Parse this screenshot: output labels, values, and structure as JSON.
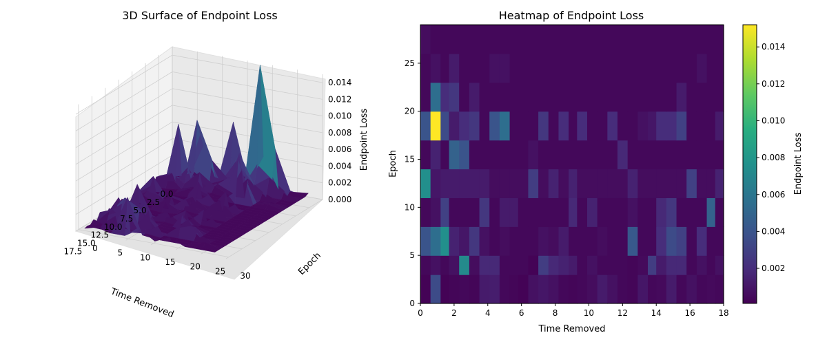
{
  "chart_data": [
    {
      "type": "surface3d",
      "title": "3D Surface of Endpoint Loss",
      "xlabel": "Time Removed",
      "ylabel": "Epoch",
      "zlabel": "Endpoint Loss",
      "x_ticks": [
        "0.0",
        "2.5",
        "5.0",
        "7.5",
        "10.0",
        "12.5",
        "15.0",
        "17.5"
      ],
      "y_ticks": [
        "0",
        "5",
        "10",
        "15",
        "20",
        "25",
        "30"
      ],
      "z_ticks": [
        "0.000",
        "0.002",
        "0.004",
        "0.006",
        "0.008",
        "0.010",
        "0.012",
        "0.014"
      ],
      "xlim": [
        0,
        18
      ],
      "ylim": [
        0,
        30
      ],
      "zlim": [
        0,
        0.015
      ],
      "colormap": "viridis"
    },
    {
      "type": "heatmap",
      "title": "Heatmap of Endpoint Loss",
      "xlabel": "Time Removed",
      "ylabel": "Epoch",
      "x_ticks": [
        "0",
        "2",
        "4",
        "6",
        "8",
        "10",
        "12",
        "14",
        "16",
        "18"
      ],
      "y_ticks": [
        "0",
        "5",
        "10",
        "15",
        "20",
        "25"
      ],
      "xlim": [
        0,
        18
      ],
      "ylim": [
        0,
        29
      ],
      "x_edges": [
        0,
        0.6,
        1.2,
        1.7,
        2.3,
        2.9,
        3.5,
        4.1,
        4.7,
        5.3,
        5.8,
        6.4,
        7.0,
        7.6,
        8.2,
        8.8,
        9.3,
        9.9,
        10.5,
        11.1,
        11.7,
        12.3,
        12.9,
        13.5,
        14.0,
        14.6,
        15.2,
        15.8,
        16.4,
        17.0,
        17.5,
        18.0
      ],
      "y_edges": [
        0,
        3,
        5,
        8,
        11,
        14,
        17,
        20,
        23,
        26,
        29
      ],
      "cbar_label": "Endpoint Loss",
      "cbar_ticks": [
        "0.002",
        "0.004",
        "0.006",
        "0.008",
        "0.010",
        "0.012",
        "0.014"
      ],
      "cbar_tick_values": [
        0.002,
        0.004,
        0.006,
        0.008,
        0.01,
        0.012,
        0.014
      ],
      "vmin": 0.0001,
      "vmax": 0.0152,
      "values": [
        [
          0.0002,
          0.0035,
          0.0002,
          0.0003,
          0.0004,
          0.0003,
          0.0012,
          0.0013,
          0.0004,
          0.0003,
          0.0002,
          0.0008,
          0.001,
          0.0008,
          0.0004,
          0.0003,
          0.0004,
          0.0006,
          0.0012,
          0.0008,
          0.0004,
          0.0003,
          0.001,
          0.0004,
          0.0005,
          0.0012,
          0.0004,
          0.0008,
          0.0004,
          0.0005,
          0.0004
        ],
        [
          0.0004,
          0.0008,
          0.0004,
          0.0008,
          0.0072,
          0.0006,
          0.0018,
          0.0018,
          0.0004,
          0.0004,
          0.0004,
          0.0002,
          0.0028,
          0.0018,
          0.0015,
          0.0012,
          0.0004,
          0.0008,
          0.0004,
          0.0004,
          0.0004,
          0.0003,
          0.0005,
          0.0028,
          0.0012,
          0.0018,
          0.0018,
          0.0004,
          0.0008,
          0.0004,
          0.0008
        ],
        [
          0.004,
          0.0055,
          0.0075,
          0.0015,
          0.001,
          0.0025,
          0.0008,
          0.0004,
          0.0006,
          0.0004,
          0.0004,
          0.0004,
          0.0008,
          0.0006,
          0.0012,
          0.0004,
          0.0004,
          0.0004,
          0.0006,
          0.0004,
          0.0004,
          0.0042,
          0.0004,
          0.0004,
          0.002,
          0.0035,
          0.003,
          0.0004,
          0.002,
          0.0004,
          0.0004
        ],
        [
          0.0004,
          0.0008,
          0.003,
          0.0004,
          0.0004,
          0.0004,
          0.0025,
          0.0004,
          0.0012,
          0.0012,
          0.0004,
          0.0004,
          0.0004,
          0.0004,
          0.0004,
          0.0018,
          0.0004,
          0.0015,
          0.0004,
          0.0004,
          0.0004,
          0.0008,
          0.0004,
          0.0004,
          0.0018,
          0.0025,
          0.0004,
          0.0004,
          0.0004,
          0.0048,
          0.0004
        ],
        [
          0.0075,
          0.001,
          0.0012,
          0.0012,
          0.0012,
          0.0012,
          0.0012,
          0.0006,
          0.0006,
          0.0006,
          0.0006,
          0.0028,
          0.0006,
          0.0015,
          0.0006,
          0.0015,
          0.0006,
          0.0006,
          0.0006,
          0.0006,
          0.0006,
          0.0015,
          0.0006,
          0.0006,
          0.0006,
          0.0006,
          0.0006,
          0.003,
          0.0006,
          0.0006,
          0.0015
        ],
        [
          0.0004,
          0.0015,
          0.0004,
          0.0048,
          0.004,
          0.0004,
          0.0004,
          0.0004,
          0.0004,
          0.0004,
          0.0004,
          0.0008,
          0.0004,
          0.0004,
          0.0004,
          0.0004,
          0.0004,
          0.0004,
          0.0004,
          0.0004,
          0.0018,
          0.0004,
          0.0004,
          0.0004,
          0.0004,
          0.0004,
          0.0004,
          0.0004,
          0.0004,
          0.0004,
          0.0004
        ],
        [
          0.004,
          0.0152,
          0.0035,
          0.0012,
          0.002,
          0.0025,
          0.0004,
          0.004,
          0.0055,
          0.0004,
          0.0004,
          0.0004,
          0.0025,
          0.0004,
          0.002,
          0.0004,
          0.002,
          0.0004,
          0.0004,
          0.002,
          0.0004,
          0.0004,
          0.0008,
          0.001,
          0.002,
          0.002,
          0.003,
          0.0004,
          0.0004,
          0.0004,
          0.0012
        ],
        [
          0.0004,
          0.0055,
          0.002,
          0.0025,
          0.0004,
          0.0012,
          0.0004,
          0.0004,
          0.0004,
          0.0004,
          0.0004,
          0.0004,
          0.0004,
          0.0004,
          0.0004,
          0.0004,
          0.0004,
          0.0004,
          0.0004,
          0.0004,
          0.0004,
          0.0004,
          0.0004,
          0.0004,
          0.0004,
          0.0004,
          0.0012,
          0.0004,
          0.0004,
          0.0004,
          0.0004
        ],
        [
          0.0004,
          0.0008,
          0.0004,
          0.0012,
          0.0004,
          0.0004,
          0.0004,
          0.0008,
          0.0008,
          0.0004,
          0.0004,
          0.0004,
          0.0004,
          0.0004,
          0.0004,
          0.0004,
          0.0004,
          0.0004,
          0.0004,
          0.0004,
          0.0004,
          0.0004,
          0.0004,
          0.0004,
          0.0004,
          0.0004,
          0.0004,
          0.0004,
          0.0008,
          0.0004,
          0.0004
        ],
        [
          0.0006,
          0.0004,
          0.0004,
          0.0004,
          0.0004,
          0.0004,
          0.0004,
          0.0004,
          0.0004,
          0.0004,
          0.0004,
          0.0004,
          0.0004,
          0.0004,
          0.0004,
          0.0004,
          0.0004,
          0.0004,
          0.0004,
          0.0004,
          0.0004,
          0.0004,
          0.0004,
          0.0004,
          0.0004,
          0.0004,
          0.0004,
          0.0004,
          0.0004,
          0.0004,
          0.0004
        ]
      ]
    }
  ]
}
